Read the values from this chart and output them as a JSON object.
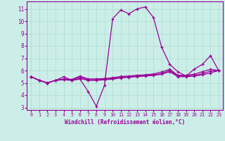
{
  "xlabel": "Windchill (Refroidissement éolien,°C)",
  "bg_color": "#cceee8",
  "line_color": "#990099",
  "grid_color": "#aaddcc",
  "xlim": [
    -0.5,
    23.5
  ],
  "ylim": [
    2.8,
    11.6
  ],
  "yticks": [
    3,
    4,
    5,
    6,
    7,
    8,
    9,
    10,
    11
  ],
  "xticks": [
    0,
    1,
    2,
    3,
    4,
    5,
    6,
    7,
    8,
    9,
    10,
    11,
    12,
    13,
    14,
    15,
    16,
    17,
    18,
    19,
    20,
    21,
    22,
    23
  ],
  "series": [
    [
      5.5,
      5.2,
      5.0,
      5.2,
      5.5,
      5.2,
      5.3,
      4.3,
      3.1,
      4.8,
      10.2,
      10.9,
      10.6,
      11.0,
      11.15,
      10.3,
      7.9,
      6.5,
      5.9,
      5.55,
      6.1,
      6.5,
      7.2,
      6.0
    ],
    [
      5.5,
      5.2,
      5.0,
      5.2,
      5.25,
      5.2,
      5.35,
      5.2,
      5.2,
      5.25,
      5.3,
      5.4,
      5.45,
      5.5,
      5.55,
      5.6,
      5.7,
      5.9,
      5.5,
      5.5,
      5.55,
      5.65,
      5.8,
      6.0
    ],
    [
      5.5,
      5.2,
      5.0,
      5.2,
      5.28,
      5.25,
      5.45,
      5.25,
      5.25,
      5.28,
      5.35,
      5.45,
      5.5,
      5.55,
      5.6,
      5.65,
      5.75,
      6.0,
      5.55,
      5.55,
      5.6,
      5.75,
      5.95,
      6.0
    ],
    [
      5.5,
      5.2,
      5.0,
      5.2,
      5.32,
      5.28,
      5.55,
      5.32,
      5.32,
      5.35,
      5.42,
      5.52,
      5.55,
      5.62,
      5.65,
      5.72,
      5.88,
      6.1,
      5.62,
      5.62,
      5.7,
      5.9,
      6.1,
      6.0
    ]
  ]
}
